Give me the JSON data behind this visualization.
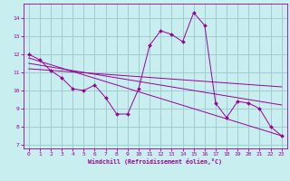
{
  "xlabel": "Windchill (Refroidissement éolien,°C)",
  "background_color": "#c8eef0",
  "grid_color": "#a0ccd0",
  "line_color": "#990099",
  "xlim": [
    -0.5,
    23.5
  ],
  "ylim": [
    6.8,
    14.8
  ],
  "xticks": [
    0,
    1,
    2,
    3,
    4,
    5,
    6,
    7,
    8,
    9,
    10,
    11,
    12,
    13,
    14,
    15,
    16,
    17,
    18,
    19,
    20,
    21,
    22,
    23
  ],
  "yticks": [
    7,
    8,
    9,
    10,
    11,
    12,
    13,
    14
  ],
  "line1_x": [
    0,
    1,
    2,
    3,
    4,
    5,
    6,
    7,
    8,
    9,
    10,
    11,
    12,
    13,
    14,
    15,
    16,
    17,
    18,
    19,
    20,
    21,
    22,
    23
  ],
  "line1_y": [
    12.0,
    11.7,
    11.1,
    10.7,
    10.1,
    10.0,
    10.3,
    9.6,
    8.7,
    8.7,
    10.1,
    12.5,
    13.3,
    13.1,
    12.7,
    14.3,
    13.6,
    9.3,
    8.5,
    9.4,
    9.3,
    9.0,
    8.0,
    7.5
  ],
  "trend1_x": [
    0,
    23
  ],
  "trend1_y": [
    11.8,
    7.5
  ],
  "trend2_x": [
    0,
    23
  ],
  "trend2_y": [
    11.5,
    9.2
  ],
  "trend3_x": [
    0,
    23
  ],
  "trend3_y": [
    11.2,
    10.2
  ]
}
